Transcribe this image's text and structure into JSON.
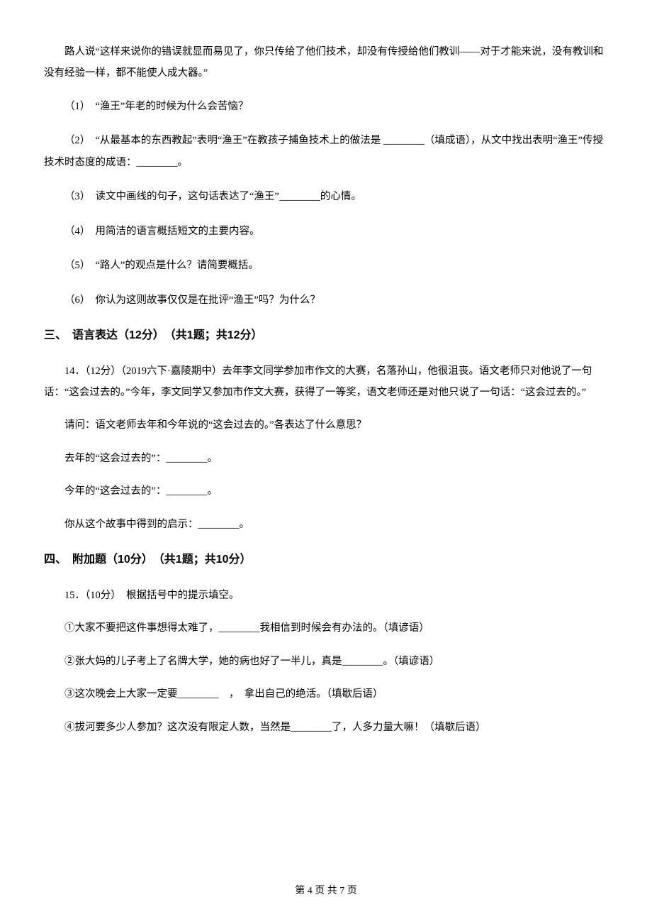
{
  "text_color": "#000000",
  "background_color": "#ffffff",
  "body_fontsize": 14.5,
  "heading_fontsize": 16,
  "line_height": 2.1,
  "intro_paragraph": "路人说“这样来说你的错误就显而易见了，你只传给了他们技术，却没有传授给他们教训——对于才能来说，没有教训和没有经验一样，都不能使人成大器。”",
  "questions": {
    "q1": "（1）　“渔王”年老的时候为什么会苦恼？",
    "q2_pre": "（2）　“从最基本的东西教起”表明“渔王”在教孩子捕鱼技术上的做法是 ",
    "q2_blank": "________",
    "q2_mid": "（填成语），从文中找出表明“渔王”传授技术时态度的成语：",
    "q2_blank2": "________",
    "q2_end": "。",
    "q3_pre": "（3）　读文中画线的句子，这句话表达了“渔王”",
    "q3_blank": "________",
    "q3_end": "的心情。",
    "q4": "（4）　用简洁的语言概括短文的主要内容。",
    "q5": "（5）　“路人”的观点是什么？请简要概括。",
    "q6": "（6）　你认为这则故事仅仅是在批评“渔王”吗？为什么？"
  },
  "section3": {
    "heading": "三、　语言表达（12分）　（共1题；共12分）",
    "prompt": "14．（12分）（2019六下·嘉陵期中）去年李文同学参加市作文的大赛，名落孙山，他很沮丧。语文老师只对他说了一句话：“这会过去的。”今年，李文同学又参加市作文大赛，获得了一等奖，语文老师还是对他只说了一句话：“这会过去的。”",
    "ask": "请问：语文老师去年和今年说的“这会过去的。”各表达了什么意思？",
    "line1_pre": "去年的“这会过去的”：",
    "line1_blank": "________",
    "line1_end": "。",
    "line2_pre": "今年的“这会过去的”：",
    "line2_blank": "________",
    "line2_end": "。",
    "line3_pre": "你从这个故事中得到的启示：",
    "line3_blank": "________",
    "line3_end": "。"
  },
  "section4": {
    "heading": "四、　附加题（10分）　（共1题；共10分）",
    "prompt": "15．（10分）　根据括号中的提示填空。",
    "item1_pre": "①大家不要把这件事想得太难了，",
    "item1_blank": "________",
    "item1_end": "我相信到时候会有办法的。（填谚语）",
    "item2_pre": "②张大妈的儿子考上了名牌大学，她的病也好了一半儿，真是",
    "item2_blank": "________",
    "item2_end": "。（填谚语）",
    "item3_pre": "③这次晚会上大家一定要",
    "item3_blank": "________",
    "item3_end": "　，　拿出自己的绝活。（填歇后语）",
    "item4_pre": "④拔河要多少人参加？这次没有限定人数，当然是",
    "item4_blank": "________",
    "item4_end": "了，人多力量大嘛！（填歇后语）"
  },
  "footer": "第 4 页 共 7 页"
}
